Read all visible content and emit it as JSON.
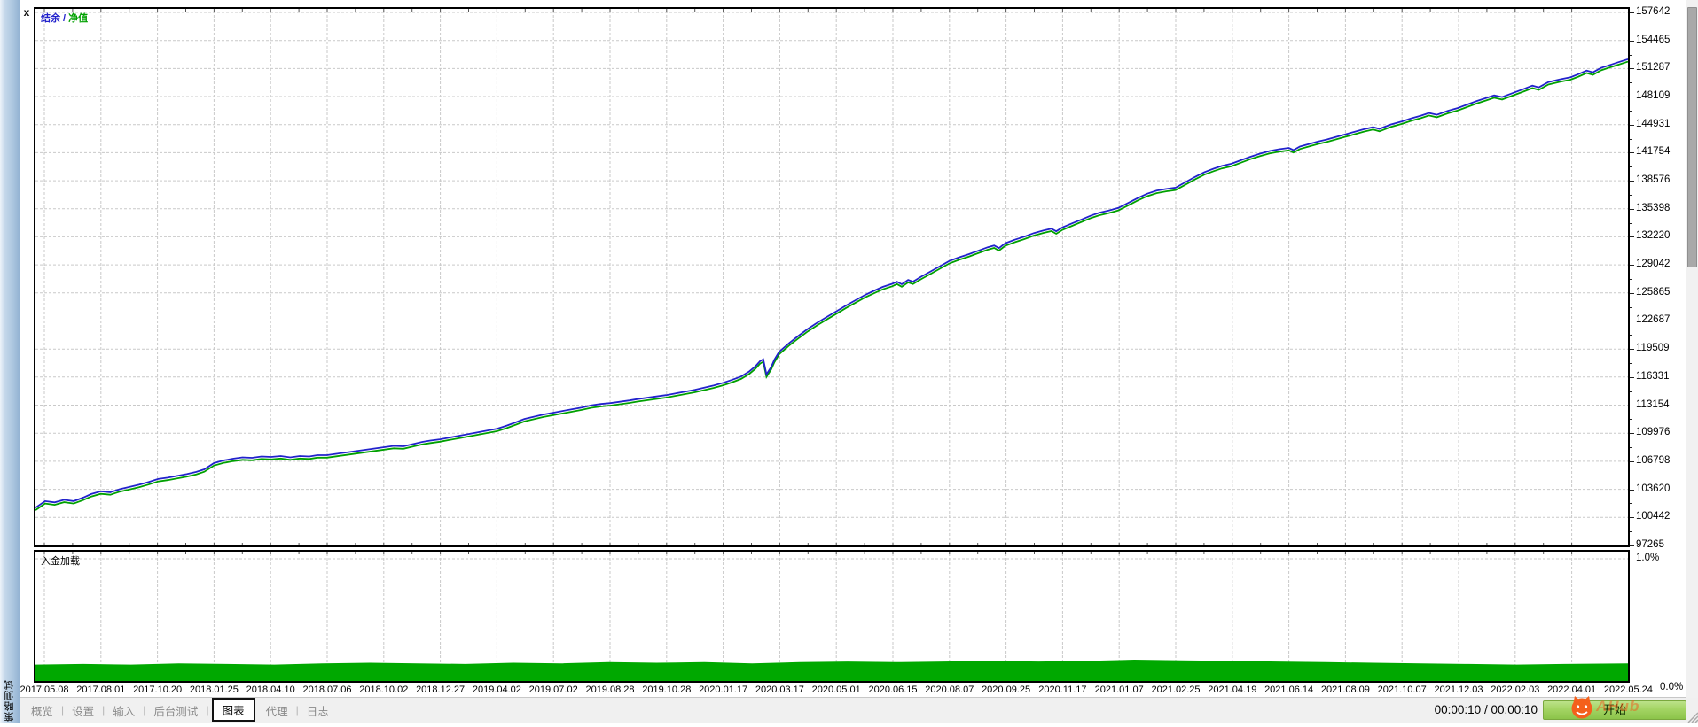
{
  "sidebar": {
    "title": "策略测试",
    "close_label": "x"
  },
  "tabs": {
    "items": [
      "概览",
      "设置",
      "输入",
      "后台测试",
      "图表",
      "代理",
      "日志"
    ],
    "active_index": 4
  },
  "status": {
    "time": "00:00:10 / 00:00:10",
    "start_label": "开始",
    "watermark_text": "AHub"
  },
  "chart_data": [
    {
      "type": "line",
      "title": "结余 / 净值",
      "title_separator": " / ",
      "legend": [
        {
          "label": "结余",
          "color": "#2222cc"
        },
        {
          "label": "净值",
          "color": "#00a000"
        }
      ],
      "grid": true,
      "ylim": [
        97253,
        158043
      ],
      "y_tick_labels": [
        157642,
        154465,
        151287,
        148109,
        144931,
        141754,
        138576,
        135398,
        132220,
        129042,
        125865,
        122687,
        119509,
        116331,
        113154,
        109976,
        106798,
        103620,
        100442,
        97265
      ],
      "x_tick_labels": [
        "2017.05.08",
        "2017.08.01",
        "2017.10.20",
        "2018.01.25",
        "2018.04.10",
        "2018.07.06",
        "2018.10.02",
        "2018.12.27",
        "2019.04.02",
        "2019.07.02",
        "2019.08.28",
        "2019.10.28",
        "2020.01.17",
        "2020.03.17",
        "2020.05.01",
        "2020.06.15",
        "2020.08.07",
        "2020.09.25",
        "2020.11.17",
        "2021.01.07",
        "2021.02.25",
        "2021.04.19",
        "2021.06.14",
        "2021.08.09",
        "2021.10.07",
        "2021.12.03",
        "2022.02.03",
        "2022.04.01",
        "2022.05.24"
      ],
      "series": [
        {
          "name": "结余",
          "color": "#2222cc",
          "points": [
            [
              0.0,
              101550
            ],
            [
              0.006,
              102300
            ],
            [
              0.012,
              102150
            ],
            [
              0.018,
              102450
            ],
            [
              0.024,
              102300
            ],
            [
              0.03,
              102700
            ],
            [
              0.035,
              103100
            ],
            [
              0.041,
              103400
            ],
            [
              0.047,
              103300
            ],
            [
              0.053,
              103650
            ],
            [
              0.059,
              103900
            ],
            [
              0.065,
              104150
            ],
            [
              0.071,
              104450
            ],
            [
              0.077,
              104800
            ],
            [
              0.083,
              104950
            ],
            [
              0.089,
              105150
            ],
            [
              0.095,
              105350
            ],
            [
              0.101,
              105600
            ],
            [
              0.106,
              105900
            ],
            [
              0.112,
              106600
            ],
            [
              0.118,
              106900
            ],
            [
              0.124,
              107100
            ],
            [
              0.13,
              107250
            ],
            [
              0.136,
              107200
            ],
            [
              0.142,
              107350
            ],
            [
              0.148,
              107300
            ],
            [
              0.154,
              107400
            ],
            [
              0.16,
              107250
            ],
            [
              0.166,
              107400
            ],
            [
              0.172,
              107350
            ],
            [
              0.177,
              107500
            ],
            [
              0.183,
              107500
            ],
            [
              0.189,
              107650
            ],
            [
              0.195,
              107800
            ],
            [
              0.201,
              107950
            ],
            [
              0.207,
              108100
            ],
            [
              0.213,
              108250
            ],
            [
              0.219,
              108400
            ],
            [
              0.225,
              108550
            ],
            [
              0.231,
              108500
            ],
            [
              0.237,
              108750
            ],
            [
              0.243,
              109000
            ],
            [
              0.248,
              109150
            ],
            [
              0.254,
              109300
            ],
            [
              0.26,
              109500
            ],
            [
              0.266,
              109700
            ],
            [
              0.272,
              109900
            ],
            [
              0.278,
              110100
            ],
            [
              0.284,
              110300
            ],
            [
              0.29,
              110500
            ],
            [
              0.296,
              110850
            ],
            [
              0.302,
              111250
            ],
            [
              0.307,
              111600
            ],
            [
              0.313,
              111850
            ],
            [
              0.319,
              112100
            ],
            [
              0.325,
              112300
            ],
            [
              0.331,
              112500
            ],
            [
              0.337,
              112700
            ],
            [
              0.343,
              112900
            ],
            [
              0.349,
              113150
            ],
            [
              0.355,
              113300
            ],
            [
              0.361,
              113400
            ],
            [
              0.367,
              113550
            ],
            [
              0.373,
              113700
            ],
            [
              0.378,
              113850
            ],
            [
              0.384,
              114000
            ],
            [
              0.39,
              114150
            ],
            [
              0.396,
              114300
            ],
            [
              0.402,
              114500
            ],
            [
              0.408,
              114700
            ],
            [
              0.414,
              114900
            ],
            [
              0.42,
              115150
            ],
            [
              0.426,
              115400
            ],
            [
              0.432,
              115700
            ],
            [
              0.437,
              116000
            ],
            [
              0.443,
              116400
            ],
            [
              0.448,
              116950
            ],
            [
              0.452,
              117550
            ],
            [
              0.455,
              118150
            ],
            [
              0.457,
              118350
            ],
            [
              0.459,
              116650
            ],
            [
              0.462,
              117500
            ],
            [
              0.464,
              118300
            ],
            [
              0.467,
              119200
            ],
            [
              0.473,
              120150
            ],
            [
              0.479,
              121000
            ],
            [
              0.485,
              121800
            ],
            [
              0.491,
              122500
            ],
            [
              0.497,
              123150
            ],
            [
              0.503,
              123800
            ],
            [
              0.509,
              124450
            ],
            [
              0.515,
              125050
            ],
            [
              0.521,
              125650
            ],
            [
              0.527,
              126150
            ],
            [
              0.532,
              126550
            ],
            [
              0.538,
              126900
            ],
            [
              0.541,
              127150
            ],
            [
              0.544,
              126850
            ],
            [
              0.548,
              127350
            ],
            [
              0.551,
              127150
            ],
            [
              0.556,
              127700
            ],
            [
              0.562,
              128300
            ],
            [
              0.568,
              128900
            ],
            [
              0.574,
              129500
            ],
            [
              0.58,
              129900
            ],
            [
              0.586,
              130250
            ],
            [
              0.592,
              130650
            ],
            [
              0.598,
              131050
            ],
            [
              0.602,
              131250
            ],
            [
              0.605,
              130950
            ],
            [
              0.609,
              131500
            ],
            [
              0.615,
              131900
            ],
            [
              0.621,
              132250
            ],
            [
              0.627,
              132650
            ],
            [
              0.633,
              132950
            ],
            [
              0.638,
              133150
            ],
            [
              0.641,
              132850
            ],
            [
              0.645,
              133300
            ],
            [
              0.651,
              133750
            ],
            [
              0.657,
              134200
            ],
            [
              0.663,
              134650
            ],
            [
              0.668,
              134950
            ],
            [
              0.674,
              135200
            ],
            [
              0.68,
              135500
            ],
            [
              0.686,
              136050
            ],
            [
              0.692,
              136600
            ],
            [
              0.698,
              137100
            ],
            [
              0.704,
              137450
            ],
            [
              0.71,
              137650
            ],
            [
              0.716,
              137800
            ],
            [
              0.722,
              138400
            ],
            [
              0.728,
              139000
            ],
            [
              0.734,
              139550
            ],
            [
              0.74,
              139950
            ],
            [
              0.745,
              140250
            ],
            [
              0.751,
              140500
            ],
            [
              0.757,
              140900
            ],
            [
              0.763,
              141300
            ],
            [
              0.769,
              141650
            ],
            [
              0.775,
              141950
            ],
            [
              0.781,
              142150
            ],
            [
              0.787,
              142300
            ],
            [
              0.79,
              142050
            ],
            [
              0.794,
              142450
            ],
            [
              0.799,
              142700
            ],
            [
              0.805,
              143000
            ],
            [
              0.811,
              143250
            ],
            [
              0.816,
              143500
            ],
            [
              0.822,
              143800
            ],
            [
              0.828,
              144100
            ],
            [
              0.834,
              144400
            ],
            [
              0.84,
              144650
            ],
            [
              0.844,
              144450
            ],
            [
              0.851,
              144950
            ],
            [
              0.858,
              145300
            ],
            [
              0.864,
              145650
            ],
            [
              0.87,
              145950
            ],
            [
              0.875,
              146250
            ],
            [
              0.88,
              146050
            ],
            [
              0.887,
              146500
            ],
            [
              0.893,
              146800
            ],
            [
              0.899,
              147200
            ],
            [
              0.905,
              147600
            ],
            [
              0.911,
              147950
            ],
            [
              0.916,
              148250
            ],
            [
              0.921,
              148050
            ],
            [
              0.929,
              148600
            ],
            [
              0.935,
              149000
            ],
            [
              0.94,
              149350
            ],
            [
              0.944,
              149150
            ],
            [
              0.95,
              149750
            ],
            [
              0.957,
              150050
            ],
            [
              0.964,
              150300
            ],
            [
              0.969,
              150650
            ],
            [
              0.974,
              151050
            ],
            [
              0.978,
              150850
            ],
            [
              0.983,
              151350
            ],
            [
              0.988,
              151650
            ],
            [
              0.993,
              151950
            ],
            [
              1.0,
              152350
            ]
          ]
        }
      ],
      "equity_series": {
        "name": "净值",
        "color": "#00a000",
        "value_offset": -280
      }
    },
    {
      "type": "area",
      "title": "入金加载",
      "color": "#00a800",
      "ylim_percent": [
        0.0,
        1.0
      ],
      "y_tick_labels": [
        "1.0%",
        "0.0%"
      ],
      "points": [
        [
          0.0,
          0.13
        ],
        [
          0.03,
          0.135
        ],
        [
          0.06,
          0.13
        ],
        [
          0.09,
          0.14
        ],
        [
          0.12,
          0.135
        ],
        [
          0.15,
          0.13
        ],
        [
          0.18,
          0.14
        ],
        [
          0.21,
          0.145
        ],
        [
          0.24,
          0.14
        ],
        [
          0.27,
          0.135
        ],
        [
          0.3,
          0.145
        ],
        [
          0.33,
          0.14
        ],
        [
          0.36,
          0.15
        ],
        [
          0.39,
          0.145
        ],
        [
          0.42,
          0.15
        ],
        [
          0.45,
          0.14
        ],
        [
          0.48,
          0.15
        ],
        [
          0.51,
          0.155
        ],
        [
          0.54,
          0.15
        ],
        [
          0.57,
          0.155
        ],
        [
          0.6,
          0.16
        ],
        [
          0.63,
          0.155
        ],
        [
          0.66,
          0.16
        ],
        [
          0.69,
          0.17
        ],
        [
          0.72,
          0.165
        ],
        [
          0.75,
          0.16
        ],
        [
          0.78,
          0.155
        ],
        [
          0.81,
          0.15
        ],
        [
          0.84,
          0.145
        ],
        [
          0.87,
          0.14
        ],
        [
          0.9,
          0.135
        ],
        [
          0.93,
          0.13
        ],
        [
          0.96,
          0.135
        ],
        [
          1.0,
          0.14
        ]
      ]
    }
  ]
}
